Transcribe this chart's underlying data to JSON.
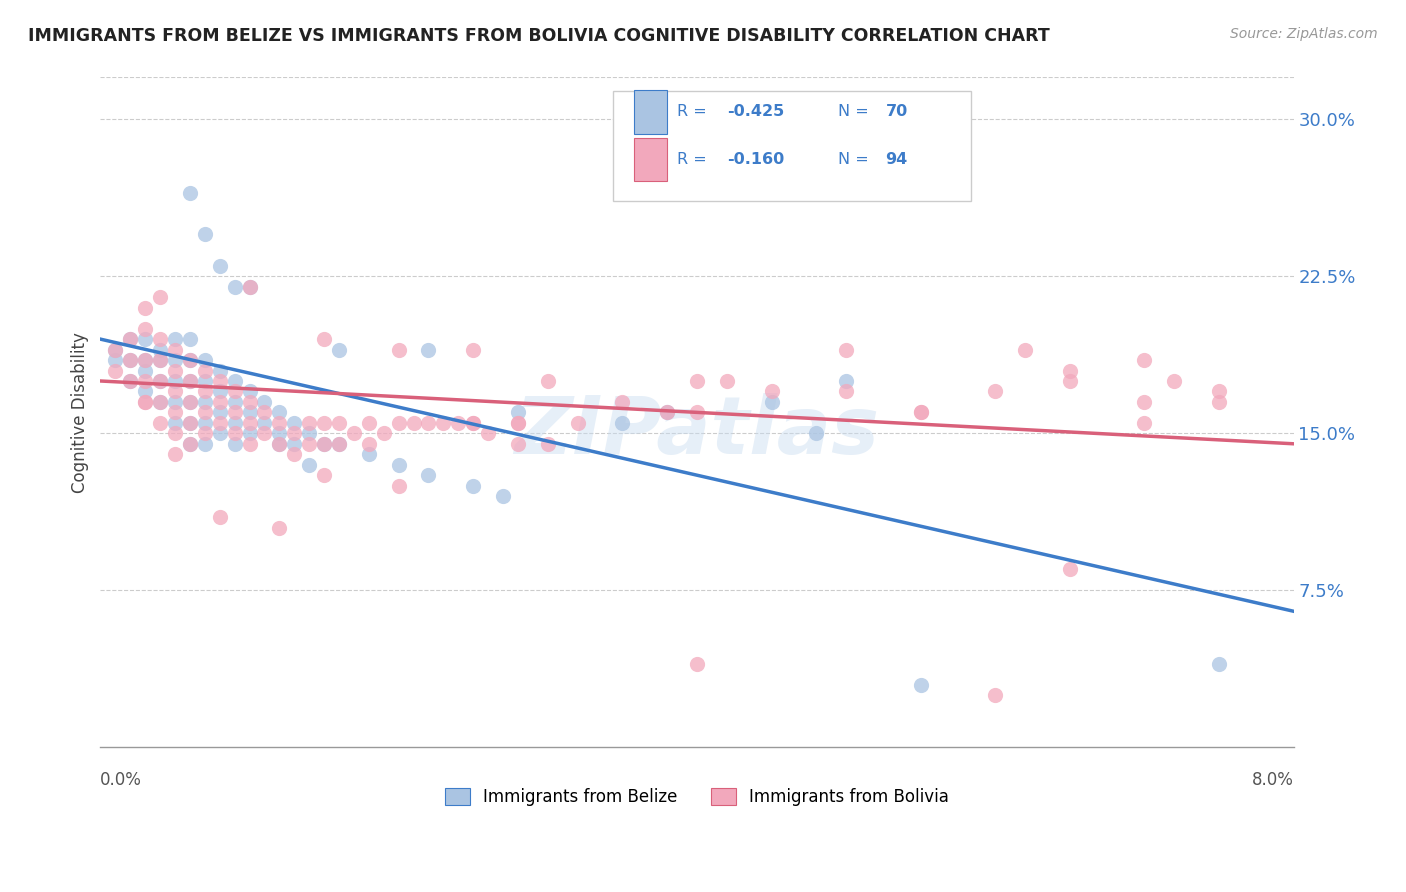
{
  "title": "IMMIGRANTS FROM BELIZE VS IMMIGRANTS FROM BOLIVIA COGNITIVE DISABILITY CORRELATION CHART",
  "source": "Source: ZipAtlas.com",
  "ylabel": "Cognitive Disability",
  "xmin": 0.0,
  "xmax": 0.08,
  "ymin": 0.0,
  "ymax": 0.32,
  "yticks": [
    0.075,
    0.15,
    0.225,
    0.3
  ],
  "ytick_labels": [
    "7.5%",
    "15.0%",
    "22.5%",
    "30.0%"
  ],
  "belize_color": "#aac4e2",
  "bolivia_color": "#f2a8bc",
  "belize_line_color": "#3d7cc9",
  "bolivia_line_color": "#d9607a",
  "legend_text_color": "#3d7cc9",
  "watermark": "ZIPatlas",
  "belize_points": [
    [
      0.001,
      0.19
    ],
    [
      0.001,
      0.185
    ],
    [
      0.002,
      0.195
    ],
    [
      0.002,
      0.185
    ],
    [
      0.002,
      0.175
    ],
    [
      0.003,
      0.195
    ],
    [
      0.003,
      0.185
    ],
    [
      0.003,
      0.18
    ],
    [
      0.003,
      0.17
    ],
    [
      0.004,
      0.19
    ],
    [
      0.004,
      0.185
    ],
    [
      0.004,
      0.175
    ],
    [
      0.004,
      0.165
    ],
    [
      0.005,
      0.195
    ],
    [
      0.005,
      0.185
    ],
    [
      0.005,
      0.175
    ],
    [
      0.005,
      0.165
    ],
    [
      0.005,
      0.155
    ],
    [
      0.006,
      0.195
    ],
    [
      0.006,
      0.185
    ],
    [
      0.006,
      0.175
    ],
    [
      0.006,
      0.165
    ],
    [
      0.006,
      0.155
    ],
    [
      0.006,
      0.145
    ],
    [
      0.007,
      0.185
    ],
    [
      0.007,
      0.175
    ],
    [
      0.007,
      0.165
    ],
    [
      0.007,
      0.155
    ],
    [
      0.007,
      0.145
    ],
    [
      0.008,
      0.18
    ],
    [
      0.008,
      0.17
    ],
    [
      0.008,
      0.16
    ],
    [
      0.008,
      0.15
    ],
    [
      0.009,
      0.175
    ],
    [
      0.009,
      0.165
    ],
    [
      0.009,
      0.155
    ],
    [
      0.009,
      0.145
    ],
    [
      0.01,
      0.17
    ],
    [
      0.01,
      0.16
    ],
    [
      0.01,
      0.15
    ],
    [
      0.011,
      0.165
    ],
    [
      0.011,
      0.155
    ],
    [
      0.012,
      0.16
    ],
    [
      0.012,
      0.15
    ],
    [
      0.013,
      0.155
    ],
    [
      0.013,
      0.145
    ],
    [
      0.014,
      0.15
    ],
    [
      0.015,
      0.145
    ],
    [
      0.006,
      0.265
    ],
    [
      0.007,
      0.245
    ],
    [
      0.008,
      0.23
    ],
    [
      0.009,
      0.22
    ],
    [
      0.01,
      0.22
    ],
    [
      0.016,
      0.19
    ],
    [
      0.022,
      0.19
    ],
    [
      0.016,
      0.145
    ],
    [
      0.018,
      0.14
    ],
    [
      0.02,
      0.135
    ],
    [
      0.022,
      0.13
    ],
    [
      0.025,
      0.125
    ],
    [
      0.027,
      0.12
    ],
    [
      0.028,
      0.16
    ],
    [
      0.035,
      0.155
    ],
    [
      0.038,
      0.16
    ],
    [
      0.045,
      0.165
    ],
    [
      0.048,
      0.15
    ],
    [
      0.05,
      0.175
    ],
    [
      0.012,
      0.145
    ],
    [
      0.014,
      0.135
    ],
    [
      0.055,
      0.03
    ],
    [
      0.075,
      0.04
    ]
  ],
  "bolivia_points": [
    [
      0.001,
      0.19
    ],
    [
      0.001,
      0.18
    ],
    [
      0.002,
      0.195
    ],
    [
      0.002,
      0.185
    ],
    [
      0.002,
      0.175
    ],
    [
      0.003,
      0.21
    ],
    [
      0.003,
      0.2
    ],
    [
      0.003,
      0.185
    ],
    [
      0.003,
      0.175
    ],
    [
      0.003,
      0.165
    ],
    [
      0.004,
      0.215
    ],
    [
      0.004,
      0.195
    ],
    [
      0.004,
      0.185
    ],
    [
      0.004,
      0.175
    ],
    [
      0.004,
      0.165
    ],
    [
      0.005,
      0.19
    ],
    [
      0.005,
      0.18
    ],
    [
      0.005,
      0.17
    ],
    [
      0.005,
      0.16
    ],
    [
      0.005,
      0.15
    ],
    [
      0.005,
      0.14
    ],
    [
      0.006,
      0.185
    ],
    [
      0.006,
      0.175
    ],
    [
      0.006,
      0.165
    ],
    [
      0.006,
      0.155
    ],
    [
      0.006,
      0.145
    ],
    [
      0.007,
      0.18
    ],
    [
      0.007,
      0.17
    ],
    [
      0.007,
      0.16
    ],
    [
      0.007,
      0.15
    ],
    [
      0.008,
      0.175
    ],
    [
      0.008,
      0.165
    ],
    [
      0.008,
      0.155
    ],
    [
      0.009,
      0.17
    ],
    [
      0.009,
      0.16
    ],
    [
      0.009,
      0.15
    ],
    [
      0.01,
      0.165
    ],
    [
      0.01,
      0.155
    ],
    [
      0.01,
      0.145
    ],
    [
      0.01,
      0.22
    ],
    [
      0.011,
      0.16
    ],
    [
      0.011,
      0.15
    ],
    [
      0.012,
      0.155
    ],
    [
      0.012,
      0.145
    ],
    [
      0.013,
      0.15
    ],
    [
      0.013,
      0.14
    ],
    [
      0.014,
      0.155
    ],
    [
      0.014,
      0.145
    ],
    [
      0.015,
      0.195
    ],
    [
      0.015,
      0.155
    ],
    [
      0.015,
      0.145
    ],
    [
      0.016,
      0.155
    ],
    [
      0.016,
      0.145
    ],
    [
      0.017,
      0.15
    ],
    [
      0.018,
      0.155
    ],
    [
      0.018,
      0.145
    ],
    [
      0.019,
      0.15
    ],
    [
      0.02,
      0.19
    ],
    [
      0.02,
      0.155
    ],
    [
      0.021,
      0.155
    ],
    [
      0.022,
      0.155
    ],
    [
      0.023,
      0.155
    ],
    [
      0.024,
      0.155
    ],
    [
      0.025,
      0.19
    ],
    [
      0.025,
      0.155
    ],
    [
      0.026,
      0.15
    ],
    [
      0.028,
      0.155
    ],
    [
      0.028,
      0.145
    ],
    [
      0.03,
      0.175
    ],
    [
      0.03,
      0.145
    ],
    [
      0.032,
      0.155
    ],
    [
      0.035,
      0.165
    ],
    [
      0.038,
      0.16
    ],
    [
      0.04,
      0.175
    ],
    [
      0.042,
      0.175
    ],
    [
      0.045,
      0.17
    ],
    [
      0.05,
      0.17
    ],
    [
      0.05,
      0.19
    ],
    [
      0.055,
      0.16
    ],
    [
      0.055,
      0.16
    ],
    [
      0.06,
      0.17
    ],
    [
      0.062,
      0.19
    ],
    [
      0.065,
      0.18
    ],
    [
      0.065,
      0.175
    ],
    [
      0.07,
      0.185
    ],
    [
      0.07,
      0.165
    ],
    [
      0.07,
      0.155
    ],
    [
      0.072,
      0.175
    ],
    [
      0.075,
      0.17
    ],
    [
      0.075,
      0.165
    ],
    [
      0.065,
      0.085
    ],
    [
      0.04,
      0.04
    ],
    [
      0.06,
      0.025
    ],
    [
      0.008,
      0.11
    ],
    [
      0.012,
      0.105
    ],
    [
      0.003,
      0.165
    ],
    [
      0.004,
      0.155
    ],
    [
      0.015,
      0.13
    ],
    [
      0.02,
      0.125
    ],
    [
      0.025,
      0.155
    ],
    [
      0.028,
      0.155
    ],
    [
      0.04,
      0.16
    ]
  ]
}
